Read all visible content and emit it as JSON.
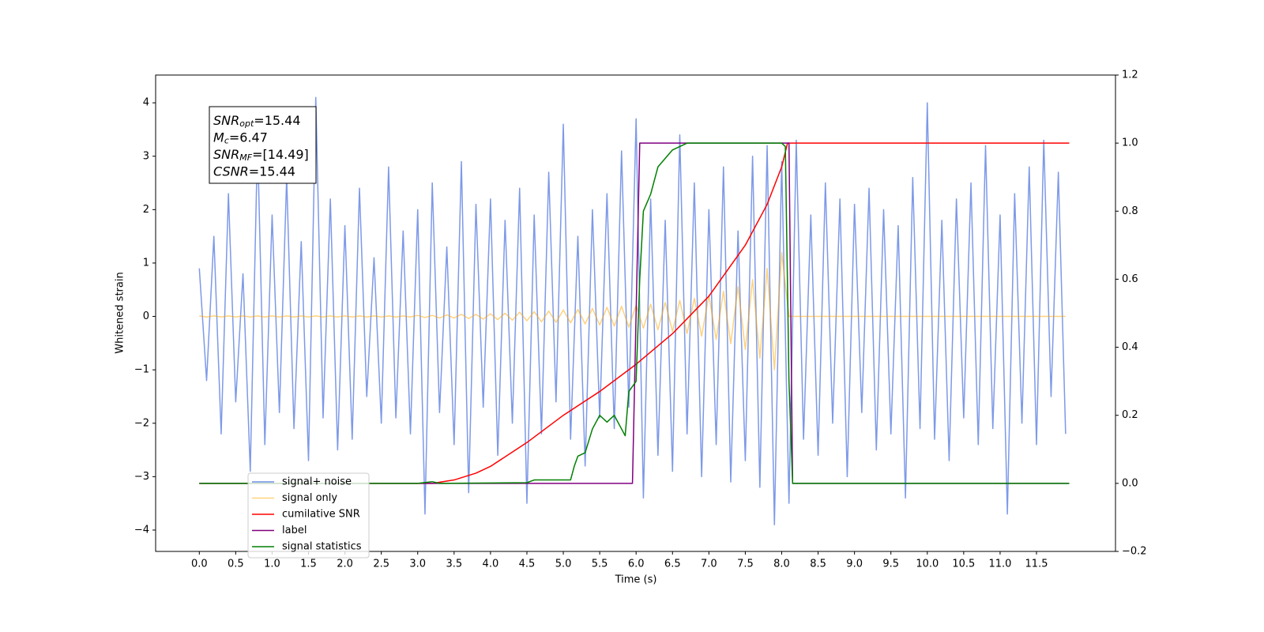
{
  "chart_data": {
    "type": "line",
    "xlabel": "Time (s)",
    "ylabel": "Whitened strain",
    "xlim": [
      -0.6,
      12.585
    ],
    "ylim": [
      -4.4,
      4.52
    ],
    "y2lim": [
      -0.2,
      1.2
    ],
    "xticks": [
      {
        "value": 0,
        "label": "0.0"
      },
      0.5,
      {
        "value": 1,
        "label": "1.0"
      },
      1.5,
      {
        "value": 2,
        "label": "2.0"
      },
      2.5,
      {
        "value": 3,
        "label": "3.0"
      },
      3.5,
      {
        "value": 4,
        "label": "4.0"
      },
      4.5,
      {
        "value": 5,
        "label": "5.0"
      },
      5.5,
      {
        "value": 6,
        "label": "6.0"
      },
      6.5,
      {
        "value": 7,
        "label": "7.0"
      },
      7.5,
      {
        "value": 8,
        "label": "8.0"
      },
      8.5,
      {
        "value": 9,
        "label": "9.0"
      },
      9.5,
      {
        "value": 10,
        "label": "10.0"
      },
      10.5,
      {
        "value": 11,
        "label": "11.0"
      },
      11.5
    ],
    "yticks": [
      {
        "value": -4,
        "label": "−4"
      },
      {
        "value": -3,
        "label": "−3"
      },
      {
        "value": -2,
        "label": "−2"
      },
      {
        "value": -1,
        "label": "−1"
      },
      0,
      1,
      2,
      3,
      4
    ],
    "y2ticks": [
      {
        "value": -0.2,
        "label": "−0.2"
      },
      {
        "value": 0,
        "label": "0.0"
      },
      0.2,
      0.4,
      0.6,
      0.8,
      {
        "value": 1,
        "label": "1.0"
      },
      1.2
    ],
    "annotations": [
      {
        "text": "SNR",
        "sub": "opt",
        "value": "=15.44"
      },
      {
        "text": "M",
        "sub": "c",
        "value": "=6.47"
      },
      {
        "text": "SNR",
        "sub": "MF",
        "value": "=[14.49]"
      },
      {
        "text": "CSNR",
        "sub": null,
        "value": "=15.44"
      }
    ],
    "x": [
      0,
      0.1,
      0.2,
      0.3,
      0.4,
      0.5,
      0.6,
      0.7,
      0.8,
      0.9,
      1,
      1.1,
      1.2,
      1.3,
      1.4,
      1.5,
      1.6,
      1.7,
      1.8,
      1.9,
      2,
      2.1,
      2.2,
      2.3,
      2.4,
      2.5,
      2.6,
      2.7,
      2.8,
      2.9,
      3,
      3.1,
      3.2,
      3.3,
      3.4,
      3.5,
      3.6,
      3.7,
      3.8,
      3.9,
      4,
      4.1,
      4.2,
      4.3,
      4.4,
      4.5,
      4.6,
      4.7,
      4.8,
      4.9,
      5,
      5.1,
      5.2,
      5.3,
      5.4,
      5.5,
      5.6,
      5.7,
      5.8,
      5.9,
      6,
      6.1,
      6.2,
      6.3,
      6.4,
      6.5,
      6.6,
      6.7,
      6.8,
      6.9,
      7,
      7.1,
      7.2,
      7.3,
      7.4,
      7.5,
      7.6,
      7.7,
      7.8,
      7.9,
      8,
      8.1,
      8.2,
      8.3,
      8.4,
      8.5,
      8.6,
      8.7,
      8.8,
      8.9,
      9,
      9.1,
      9.2,
      9.3,
      9.4,
      9.5,
      9.6,
      9.7,
      9.8,
      9.9,
      10,
      10.1,
      10.2,
      10.3,
      10.4,
      10.5,
      10.6,
      10.7,
      10.8,
      10.9,
      11,
      11.1,
      11.2,
      11.3,
      11.4,
      11.5,
      11.6,
      11.7,
      11.8,
      11.9
    ],
    "series": [
      {
        "name": "signal+ noise",
        "color": "#6f8ee6",
        "values": [
          0.9,
          -1.2,
          1.5,
          -2.2,
          2.3,
          -1.6,
          0.8,
          -2.9,
          3.3,
          -2.4,
          1.9,
          -1.8,
          2.6,
          -2.1,
          1.4,
          -2.7,
          4.1,
          -1.9,
          2.2,
          -2.5,
          1.7,
          -2.3,
          2.4,
          -1.5,
          1.1,
          -2.0,
          2.8,
          -1.9,
          1.6,
          -2.2,
          2.0,
          -3.7,
          2.5,
          -1.8,
          1.3,
          -2.4,
          2.9,
          -3.3,
          2.1,
          -1.7,
          2.2,
          -2.6,
          1.8,
          -2.0,
          2.4,
          -3.5,
          1.9,
          -2.2,
          2.7,
          -1.6,
          3.6,
          -2.3,
          1.5,
          -2.8,
          2.0,
          -1.9,
          2.3,
          -2.1,
          3.1,
          -1.7,
          3.7,
          -3.4,
          2.2,
          -2.6,
          1.8,
          -2.9,
          3.4,
          -2.2,
          2.5,
          -3.0,
          2.0,
          -2.4,
          2.8,
          -3.1,
          1.6,
          -2.7,
          3.0,
          -3.2,
          3.2,
          -3.9,
          2.9,
          -3.5,
          3.3,
          -2.3,
          1.9,
          -2.6,
          2.5,
          -2.0,
          2.2,
          -3.0,
          2.1,
          -1.8,
          2.4,
          -2.5,
          2.0,
          -2.2,
          1.7,
          -3.4,
          2.6,
          -2.1,
          4.0,
          -2.3,
          1.8,
          -2.7,
          2.2,
          -1.9,
          2.5,
          -2.4,
          3.2,
          -2.1,
          1.9,
          -3.7,
          2.3,
          -2.0,
          2.8,
          -2.4,
          3.3,
          -1.5,
          2.7,
          -2.2
        ]
      },
      {
        "name": "signal only",
        "color": "#ffa500",
        "values": [
          0.01,
          -0.01,
          0.01,
          -0.01,
          0.01,
          -0.01,
          0.01,
          -0.01,
          0.01,
          -0.01,
          0.01,
          -0.01,
          0.01,
          -0.01,
          0.01,
          -0.01,
          0.01,
          -0.01,
          0.01,
          -0.01,
          0.01,
          -0.01,
          0.01,
          -0.01,
          0.01,
          -0.01,
          0.01,
          -0.01,
          0.01,
          -0.01,
          0.02,
          -0.02,
          0.02,
          -0.03,
          0.03,
          -0.03,
          0.04,
          -0.04,
          0.04,
          -0.05,
          0.05,
          -0.06,
          0.06,
          -0.07,
          0.08,
          -0.08,
          0.09,
          -0.1,
          0.1,
          -0.11,
          0.12,
          -0.12,
          0.13,
          -0.14,
          0.15,
          -0.16,
          0.17,
          -0.18,
          0.19,
          -0.2,
          0.21,
          -0.22,
          0.23,
          -0.25,
          0.26,
          -0.28,
          0.3,
          -0.32,
          0.34,
          -0.37,
          0.4,
          -0.43,
          0.47,
          -0.51,
          0.56,
          -0.62,
          0.69,
          -0.78,
          0.9,
          -1.0,
          1.2,
          0,
          0,
          0,
          0,
          0,
          0,
          0,
          0,
          0,
          0,
          0,
          0,
          0,
          0,
          0,
          0,
          0,
          0,
          0,
          0,
          0,
          0,
          0,
          0,
          0,
          0,
          0,
          0,
          0,
          0,
          0,
          0,
          0,
          0,
          0,
          0,
          0,
          0,
          0
        ]
      },
      {
        "name": "cumilative SNR",
        "color": "#ff0000",
        "axis": "y2",
        "x": [
          0,
          3.2,
          3.5,
          3.8,
          4.0,
          4.5,
          5.0,
          5.5,
          6.0,
          6.5,
          7.0,
          7.5,
          7.8,
          8.0,
          8.08,
          8.1,
          11.95
        ],
        "values": [
          0,
          0,
          0.01,
          0.03,
          0.05,
          0.12,
          0.2,
          0.27,
          0.35,
          0.44,
          0.55,
          0.7,
          0.82,
          0.93,
          1.0,
          1.0,
          1.0
        ]
      },
      {
        "name": "label",
        "color": "#800080",
        "axis": "y2",
        "x": [
          0,
          5.95,
          6.05,
          8.1,
          8.15,
          11.95
        ],
        "values": [
          0,
          0,
          1,
          1,
          0,
          0
        ]
      },
      {
        "name": "signal statistics",
        "color": "#008000",
        "axis": "y2",
        "x": [
          0,
          3.0,
          3.2,
          3.3,
          4.5,
          4.6,
          4.9,
          5.1,
          5.15,
          5.2,
          5.3,
          5.4,
          5.5,
          5.6,
          5.7,
          5.85,
          5.9,
          6.0,
          6.05,
          6.1,
          6.2,
          6.3,
          6.5,
          6.7,
          7.0,
          8.0,
          8.05,
          8.1,
          8.15,
          11.95
        ],
        "values": [
          0,
          0,
          0.005,
          0,
          0.002,
          0.01,
          0.01,
          0.01,
          0.05,
          0.08,
          0.09,
          0.16,
          0.2,
          0.18,
          0.2,
          0.14,
          0.27,
          0.3,
          0.6,
          0.8,
          0.85,
          0.93,
          0.98,
          1.0,
          1.0,
          1.0,
          0.99,
          0.3,
          0,
          0
        ]
      }
    ]
  }
}
